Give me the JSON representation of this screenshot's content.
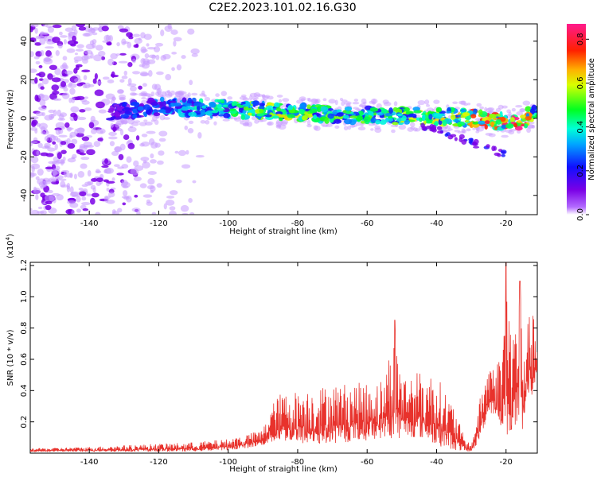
{
  "title": "C2E2.2023.101.02.16.G30",
  "chart_data": [
    {
      "type": "heatmap",
      "xlabel": "Height of straight line (km)",
      "ylabel": "Frequency (Hz)",
      "xlim": [
        -157,
        -11
      ],
      "ylim": [
        -50,
        49
      ],
      "xticks": [
        -140,
        -120,
        -100,
        -80,
        -60,
        -40,
        -20
      ],
      "yticks": [
        -40,
        -20,
        0,
        20,
        40
      ],
      "colorbar": {
        "label": "Normalized spectral amplitude",
        "range": [
          0.0,
          0.87
        ],
        "ticks": [
          0.0,
          0.2,
          0.4,
          0.6,
          0.8
        ],
        "colormap": "rainbow (violet → blue → cyan → green → yellow → red → magenta)"
      },
      "ridge": {
        "description": "narrow high-amplitude band near 0 Hz from -134 km to -11 km, scattered low-amplitude noise below -110 km",
        "x": [
          -134,
          -120,
          -100,
          -90,
          -80,
          -70,
          -60,
          -50,
          -40,
          -30,
          -20,
          -15,
          -12
        ],
        "freq": [
          3,
          6,
          5,
          4,
          3,
          2,
          2,
          1,
          1,
          0,
          -2,
          -1,
          3
        ],
        "amplitude": [
          0.2,
          0.3,
          0.45,
          0.6,
          0.55,
          0.5,
          0.5,
          0.55,
          0.6,
          0.7,
          0.8,
          0.87,
          0.5
        ]
      },
      "branch": {
        "description": "weak secondary feature descending from ~ -44 km to ~ -20 km",
        "x": [
          -44,
          -38,
          -32,
          -28,
          -23,
          -20
        ],
        "freq": [
          -4,
          -7,
          -11,
          -14,
          -17,
          -19
        ]
      }
    },
    {
      "type": "line",
      "color": "#e8322c",
      "xlabel": "Height of straight line (km)",
      "ylabel": "SNR (10 * v/v)",
      "y_multiplier_label": "(x10",
      "y_multiplier_exp": "4",
      "xlim": [
        -157,
        -11
      ],
      "ylim": [
        0,
        1.22
      ],
      "xticks": [
        -140,
        -120,
        -100,
        -80,
        -60,
        -40,
        -20
      ],
      "yticks": [
        0.2,
        0.4,
        0.6,
        0.8,
        1.0,
        1.2
      ],
      "series": [
        {
          "x": [
            -157,
            -140,
            -120,
            -110,
            -100,
            -95,
            -90,
            -88,
            -85,
            -80,
            -75,
            -70,
            -65,
            -60,
            -55,
            -52,
            -50,
            -45,
            -40,
            -35,
            -32,
            -30,
            -28,
            -25,
            -23,
            -21,
            -20,
            -19,
            -18,
            -17,
            -16,
            -15,
            -14,
            -13,
            -12,
            -11
          ],
          "low": [
            0.01,
            0.01,
            0.01,
            0.01,
            0.02,
            0.03,
            0.05,
            0.06,
            0.08,
            0.06,
            0.05,
            0.06,
            0.07,
            0.08,
            0.1,
            0.08,
            0.1,
            0.1,
            0.05,
            0.02,
            0.01,
            0.01,
            0.06,
            0.25,
            0.25,
            0.15,
            0.1,
            0.1,
            0.12,
            0.15,
            0.1,
            0.08,
            0.3,
            0.35,
            0.4,
            0.5
          ],
          "high": [
            0.03,
            0.04,
            0.06,
            0.07,
            0.09,
            0.12,
            0.15,
            0.3,
            0.38,
            0.4,
            0.42,
            0.44,
            0.45,
            0.45,
            0.48,
            0.85,
            0.5,
            0.52,
            0.5,
            0.3,
            0.1,
            0.05,
            0.3,
            0.6,
            0.55,
            0.7,
            1.22,
            0.9,
            0.8,
            1.0,
            1.1,
            0.85,
            0.8,
            0.92,
            0.87,
            0.7
          ]
        }
      ]
    }
  ]
}
